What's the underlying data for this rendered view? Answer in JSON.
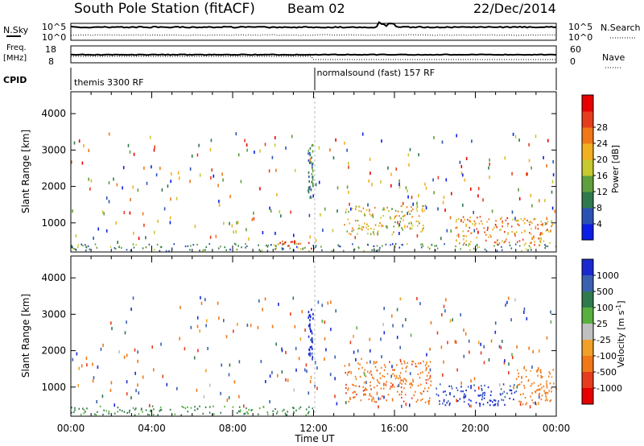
{
  "header": {
    "title": "South Pole Station (fitACF)",
    "beam": "Beam 02",
    "date": "22/Dec/2014"
  },
  "summary_panels": {
    "nsky_label": "N.Sky",
    "nsearch_label": "N.Search",
    "freq_label_line1": "Freq.",
    "freq_label_line2": "[MHz]",
    "nave_label": "Nave",
    "cpid_label": "CPID",
    "noise_left_ticks": [
      "10^5",
      "10^0"
    ],
    "noise_right_ticks": [
      "10^5",
      "10^0"
    ],
    "freq_ticks": [
      "18",
      "8"
    ],
    "nave_ticks": [
      "60",
      "0"
    ],
    "cpid_segments": [
      {
        "label": "themis 3300 RF",
        "start_hour": 0,
        "end_hour": 12
      },
      {
        "label": "normalsound (fast) 157 RF",
        "start_hour": 12,
        "end_hour": 24
      }
    ]
  },
  "chart_data": [
    {
      "type": "heatmap",
      "title": "",
      "xlabel": "Time UT",
      "ylabel": "Slant Range [km]",
      "xlim": [
        0,
        24
      ],
      "ylim": [
        200,
        4600
      ],
      "x_ticks": [
        "00:00",
        "04:00",
        "08:00",
        "12:00",
        "16:00",
        "20:00",
        "00:00"
      ],
      "y_ticks": [
        1000,
        2000,
        3000,
        4000
      ],
      "colorbar": {
        "label": "Power [dB]",
        "range": [
          0,
          32
        ],
        "ticks": [
          4,
          8,
          12,
          16,
          20,
          24,
          28
        ],
        "colors": [
          "#0a1ee6",
          "#2a52b4",
          "#2f7a4c",
          "#5f9f3e",
          "#c8c830",
          "#f0b020",
          "#f07818",
          "#e63c1e",
          "#e60000"
        ]
      },
      "features": [
        {
          "desc": "near-range scatter",
          "start_hour": 0,
          "end_hour": 24,
          "range_km": [
            250,
            450
          ],
          "value_db": 10
        },
        {
          "desc": "scatter patch",
          "start_hour": 10.2,
          "end_hour": 11.9,
          "range_km": [
            300,
            550
          ],
          "value_db": 24
        },
        {
          "desc": "scatter patch",
          "start_hour": 13.5,
          "end_hour": 17.5,
          "range_km": [
            700,
            1500
          ],
          "value_db": 18
        },
        {
          "desc": "scatter patch",
          "start_hour": 19.0,
          "end_hour": 23.8,
          "range_km": [
            400,
            1200
          ],
          "value_db": 22
        }
      ]
    },
    {
      "type": "heatmap",
      "title": "",
      "xlabel": "Time UT",
      "ylabel": "Slant Range [km]",
      "xlim": [
        0,
        24
      ],
      "ylim": [
        200,
        4600
      ],
      "x_ticks": [
        "00:00",
        "04:00",
        "08:00",
        "12:00",
        "16:00",
        "20:00",
        "00:00"
      ],
      "y_ticks": [
        1000,
        2000,
        3000,
        4000
      ],
      "colorbar": {
        "label": "Velocity [m s^-1]",
        "ticks": [
          "1000",
          "500",
          "100",
          "25",
          "-25",
          "-100",
          "-500",
          "-1000"
        ],
        "colors": [
          "#1a2ad0",
          "#3a60b0",
          "#2f7a4c",
          "#58b040",
          "#c0c0c0",
          "#f0a028",
          "#f07818",
          "#e63c1e",
          "#e60000"
        ]
      },
      "features": [
        {
          "desc": "near-range scatter",
          "start_hour": 0,
          "end_hour": 12,
          "range_km": [
            250,
            500
          ],
          "value_ms": 60
        },
        {
          "desc": "scatter patch",
          "start_hour": 13.5,
          "end_hour": 17.8,
          "range_km": [
            600,
            1800
          ],
          "value_ms": -400
        },
        {
          "desc": "scatter patch",
          "start_hour": 18.0,
          "end_hour": 22.0,
          "range_km": [
            500,
            1100
          ],
          "value_ms": 600
        },
        {
          "desc": "scatter patch",
          "start_hour": 22.0,
          "end_hour": 24.0,
          "range_km": [
            500,
            1500
          ],
          "value_ms": -150
        }
      ]
    }
  ]
}
